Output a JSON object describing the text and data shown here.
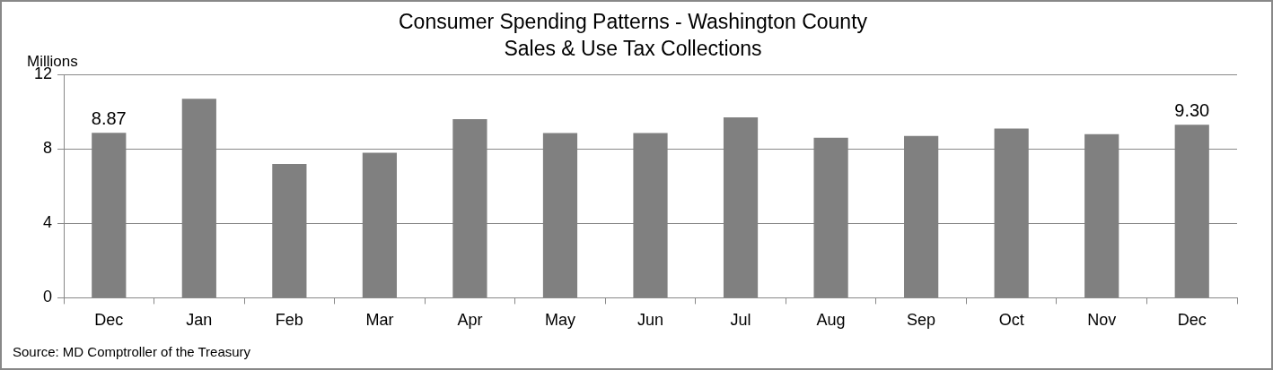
{
  "chart_data": {
    "type": "bar",
    "title": "Consumer Spending Patterns - Washington County",
    "subtitle": "Sales & Use Tax Collections",
    "ylabel": "Millions",
    "categories": [
      "Dec",
      "Jan",
      "Feb",
      "Mar",
      "Apr",
      "May",
      "Jun",
      "Jul",
      "Aug",
      "Sep",
      "Oct",
      "Nov",
      "Dec"
    ],
    "values": [
      8.87,
      10.7,
      7.2,
      7.8,
      9.6,
      8.85,
      8.85,
      9.7,
      8.6,
      8.7,
      9.1,
      8.8,
      9.3
    ],
    "value_labels": [
      "8.87",
      null,
      null,
      null,
      null,
      null,
      null,
      null,
      null,
      null,
      null,
      null,
      "9.30"
    ],
    "color": "#808080",
    "ylim": [
      0,
      12
    ],
    "yticks": [
      0,
      4,
      8,
      12
    ],
    "grid": "y",
    "legend": false,
    "annotations": [
      "Source: MD Comptroller of the Treasury"
    ]
  }
}
